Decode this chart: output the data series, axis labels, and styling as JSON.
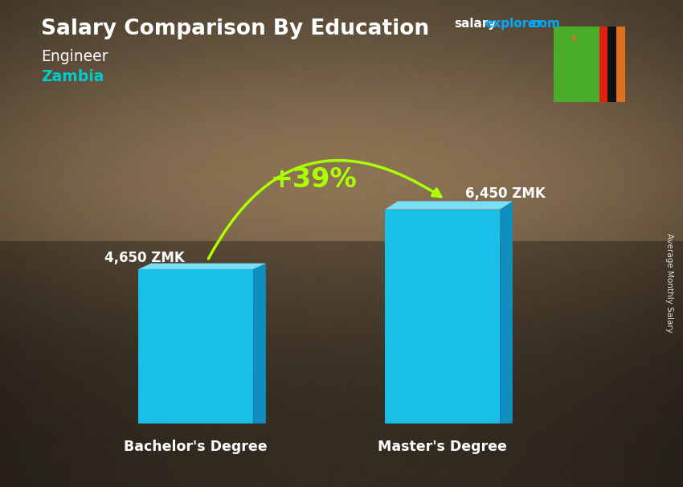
{
  "title": "Salary Comparison By Education",
  "subtitle1": "Engineer",
  "subtitle2": "Zambia",
  "categories": [
    "Bachelor's Degree",
    "Master's Degree"
  ],
  "values": [
    4650,
    6450
  ],
  "value_labels": [
    "4,650 ZMK",
    "6,450 ZMK"
  ],
  "bar_color_front": "#18C0E8",
  "bar_color_top": "#7ADFF5",
  "bar_color_side": "#0E8FBF",
  "pct_label": "+39%",
  "pct_color": "#AAFF00",
  "arrow_color": "#AAFF00",
  "title_color": "#FFFFFF",
  "subtitle1_color": "#FFFFFF",
  "subtitle2_color": "#00CCCC",
  "value_label_color": "#FFFFFF",
  "xlabel_color": "#FFFFFF",
  "rotated_label": "Average Monthly Salary",
  "rotated_label_color": "#DDDDDD",
  "website_salary_color": "#FFFFFF",
  "website_explorer_color": "#00AAFF",
  "ylim": [
    0,
    8500
  ],
  "x_positions": [
    0.27,
    0.7
  ],
  "bar_width": 0.2,
  "flag_green": "#4AAD2A",
  "flag_red": "#DE2010",
  "flag_black": "#111111",
  "flag_orange": "#E07020"
}
